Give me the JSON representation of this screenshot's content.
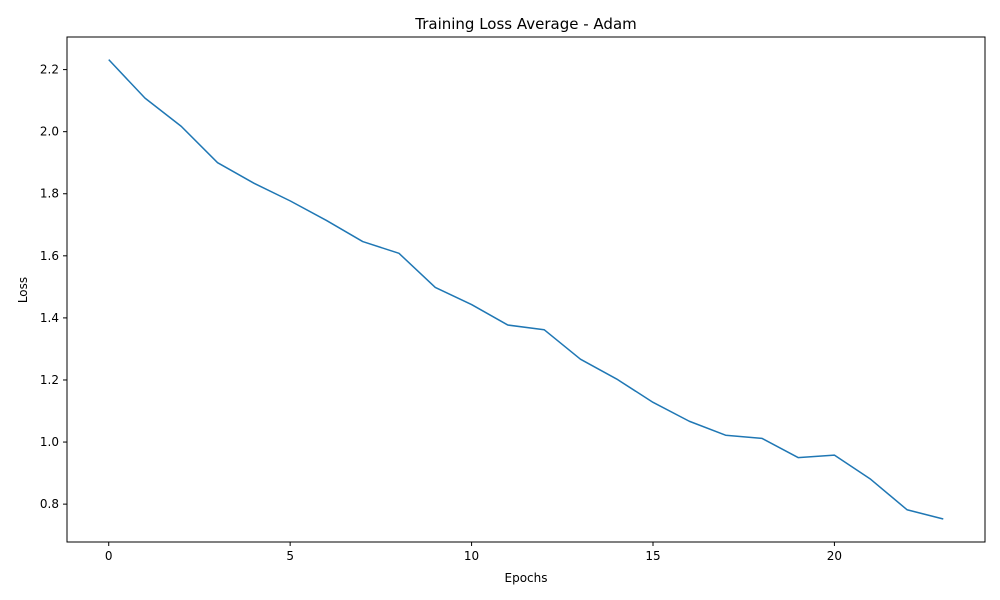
{
  "chart_data": {
    "type": "line",
    "title": "Training Loss Average - Adam",
    "xlabel": "Epochs",
    "ylabel": "Loss",
    "xlim": [
      -1.15,
      24.15
    ],
    "ylim": [
      0.678,
      2.305
    ],
    "xticks": [
      0,
      5,
      10,
      15,
      20
    ],
    "yticks": [
      0.8,
      1.0,
      1.2,
      1.4,
      1.6,
      1.8,
      2.0,
      2.2
    ],
    "grid": false,
    "series": [
      {
        "color": "#1f77b4",
        "x": [
          0,
          1,
          2,
          3,
          4,
          5,
          6,
          7,
          8,
          9,
          10,
          11,
          12,
          13,
          14,
          15,
          16,
          17,
          18,
          19,
          20,
          21,
          22,
          23
        ],
        "y": [
          2.232,
          2.108,
          2.017,
          1.9,
          1.834,
          1.777,
          1.714,
          1.646,
          1.608,
          1.498,
          1.443,
          1.377,
          1.362,
          1.267,
          1.203,
          1.128,
          1.067,
          1.022,
          1.012,
          0.95,
          0.958,
          0.88,
          0.782,
          0.752
        ]
      }
    ]
  }
}
